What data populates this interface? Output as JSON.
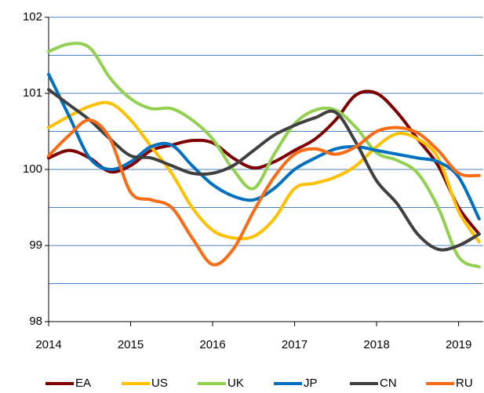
{
  "chart_data": {
    "type": "line",
    "x": [
      2014,
      2014.25,
      2014.5,
      2014.75,
      2015,
      2015.25,
      2015.5,
      2015.75,
      2016,
      2016.25,
      2016.5,
      2016.75,
      2017,
      2017.25,
      2017.5,
      2017.75,
      2018,
      2018.25,
      2018.5,
      2018.75,
      2019,
      2019.25
    ],
    "series": [
      {
        "name": "EA",
        "color": "#7f0000",
        "values": [
          100.15,
          100.25,
          100.15,
          99.97,
          100.05,
          100.25,
          100.32,
          100.38,
          100.35,
          100.15,
          100.02,
          100.1,
          100.25,
          100.4,
          100.65,
          100.98,
          101.0,
          100.75,
          100.4,
          100.05,
          99.5,
          99.15
        ]
      },
      {
        "name": "US",
        "color": "#ffc000",
        "values": [
          100.55,
          100.7,
          100.83,
          100.87,
          100.65,
          100.3,
          99.95,
          99.5,
          99.2,
          99.1,
          99.12,
          99.35,
          99.75,
          99.82,
          99.9,
          100.05,
          100.3,
          100.47,
          100.4,
          100.15,
          99.45,
          99.05
        ]
      },
      {
        "name": "UK",
        "color": "#92d050",
        "values": [
          101.55,
          101.65,
          101.6,
          101.2,
          100.93,
          100.8,
          100.8,
          100.65,
          100.4,
          100.0,
          99.75,
          100.2,
          100.6,
          100.78,
          100.78,
          100.55,
          100.22,
          100.12,
          99.95,
          99.5,
          98.85,
          98.72
        ]
      },
      {
        "name": "JP",
        "color": "#0070c0",
        "values": [
          101.25,
          100.7,
          100.15,
          100.0,
          100.1,
          100.3,
          100.32,
          100.05,
          99.8,
          99.65,
          99.6,
          99.75,
          100.0,
          100.15,
          100.27,
          100.3,
          100.25,
          100.2,
          100.15,
          100.1,
          99.9,
          99.35
        ]
      },
      {
        "name": "CN",
        "color": "#404040",
        "values": [
          101.05,
          100.85,
          100.65,
          100.4,
          100.18,
          100.15,
          100.05,
          99.95,
          99.95,
          100.05,
          100.25,
          100.45,
          100.58,
          100.68,
          100.75,
          100.35,
          99.85,
          99.55,
          99.15,
          98.95,
          99.0,
          99.15
        ]
      },
      {
        "name": "RU",
        "color": "#f96b14",
        "values": [
          100.18,
          100.45,
          100.65,
          100.4,
          99.7,
          99.6,
          99.5,
          99.1,
          98.75,
          98.95,
          99.45,
          99.9,
          100.2,
          100.27,
          100.2,
          100.3,
          100.5,
          100.55,
          100.48,
          100.25,
          99.95,
          99.92
        ]
      }
    ],
    "xlim": [
      2014,
      2019.3
    ],
    "xticks": [
      2014,
      2015,
      2016,
      2017,
      2018,
      2019
    ],
    "ylim": [
      98,
      102
    ],
    "yticks": [
      98,
      99,
      100,
      101,
      102
    ],
    "minor_yticks": [
      98.5,
      99.5,
      100.5,
      101.5
    ],
    "grid": true,
    "grid_color": "#4f81bd",
    "legend": "bottom"
  }
}
